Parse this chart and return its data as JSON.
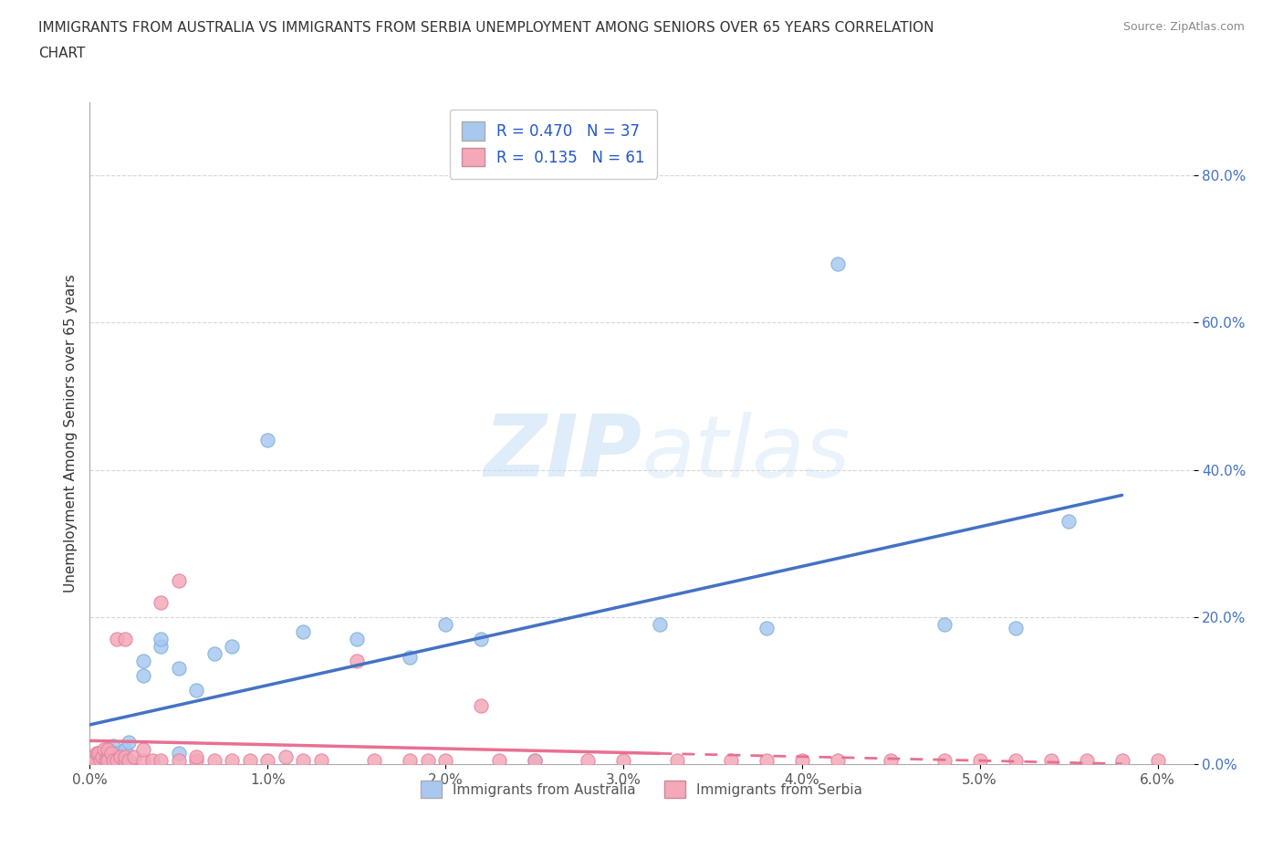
{
  "title": "IMMIGRANTS FROM AUSTRALIA VS IMMIGRANTS FROM SERBIA UNEMPLOYMENT AMONG SENIORS OVER 65 YEARS CORRELATION\nCHART",
  "source": "Source: ZipAtlas.com",
  "ylabel": "Unemployment Among Seniors over 65 years",
  "xlim": [
    0.0,
    0.062
  ],
  "ylim": [
    0.0,
    0.9
  ],
  "xticks": [
    0.0,
    0.01,
    0.02,
    0.03,
    0.04,
    0.05,
    0.06
  ],
  "yticks": [
    0.0,
    0.2,
    0.4,
    0.6,
    0.8
  ],
  "australia_color": "#a8c8f0",
  "australia_edge_color": "#7aafd4",
  "serbia_color": "#f4a8b8",
  "serbia_edge_color": "#e080a0",
  "australia_line_color": "#4472c4",
  "serbia_line_color": "#e87090",
  "R_australia": 0.47,
  "N_australia": 37,
  "R_serbia": 0.135,
  "N_serbia": 61,
  "watermark": "ZIPatlas",
  "legend_text_color": "#2255cc",
  "tick_color": "#4472c4",
  "australia_x": [
    0.0002,
    0.0003,
    0.0005,
    0.0005,
    0.0007,
    0.0008,
    0.001,
    0.001,
    0.0012,
    0.0013,
    0.0015,
    0.0018,
    0.002,
    0.002,
    0.0022,
    0.003,
    0.003,
    0.004,
    0.004,
    0.005,
    0.005,
    0.006,
    0.007,
    0.008,
    0.01,
    0.012,
    0.015,
    0.018,
    0.02,
    0.022,
    0.025,
    0.032,
    0.038,
    0.042,
    0.048,
    0.052,
    0.055
  ],
  "australia_y": [
    0.005,
    0.01,
    0.005,
    0.015,
    0.01,
    0.005,
    0.015,
    0.02,
    0.01,
    0.025,
    0.015,
    0.01,
    0.02,
    0.005,
    0.03,
    0.12,
    0.14,
    0.16,
    0.17,
    0.015,
    0.13,
    0.1,
    0.15,
    0.16,
    0.44,
    0.18,
    0.17,
    0.145,
    0.19,
    0.17,
    0.005,
    0.19,
    0.185,
    0.68,
    0.19,
    0.185,
    0.33
  ],
  "serbia_x": [
    0.0001,
    0.0002,
    0.0003,
    0.0004,
    0.0005,
    0.0006,
    0.0007,
    0.0008,
    0.0009,
    0.001,
    0.001,
    0.001,
    0.0012,
    0.0013,
    0.0015,
    0.0015,
    0.0017,
    0.002,
    0.002,
    0.002,
    0.0022,
    0.0025,
    0.003,
    0.003,
    0.0035,
    0.004,
    0.004,
    0.005,
    0.005,
    0.006,
    0.006,
    0.007,
    0.008,
    0.009,
    0.01,
    0.011,
    0.012,
    0.013,
    0.015,
    0.016,
    0.018,
    0.019,
    0.02,
    0.022,
    0.023,
    0.025,
    0.028,
    0.03,
    0.033,
    0.036,
    0.038,
    0.04,
    0.042,
    0.045,
    0.048,
    0.05,
    0.052,
    0.054,
    0.056,
    0.058,
    0.06
  ],
  "serbia_y": [
    0.005,
    0.01,
    0.005,
    0.015,
    0.015,
    0.005,
    0.01,
    0.02,
    0.005,
    0.01,
    0.02,
    0.005,
    0.015,
    0.005,
    0.17,
    0.005,
    0.01,
    0.17,
    0.005,
    0.01,
    0.005,
    0.01,
    0.005,
    0.02,
    0.005,
    0.005,
    0.22,
    0.005,
    0.25,
    0.005,
    0.01,
    0.005,
    0.005,
    0.005,
    0.005,
    0.01,
    0.005,
    0.005,
    0.14,
    0.005,
    0.005,
    0.005,
    0.005,
    0.08,
    0.005,
    0.005,
    0.005,
    0.005,
    0.005,
    0.005,
    0.005,
    0.005,
    0.005,
    0.005,
    0.005,
    0.005,
    0.005,
    0.005,
    0.005,
    0.005,
    0.005
  ]
}
